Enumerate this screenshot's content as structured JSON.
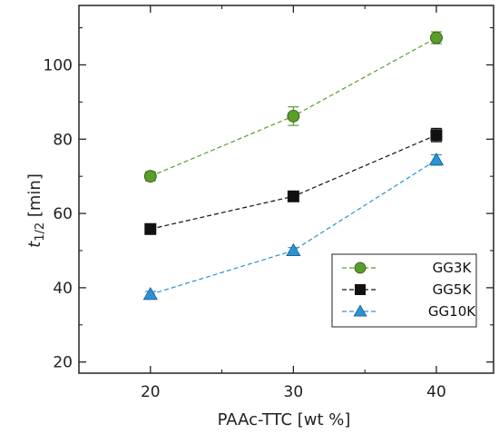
{
  "chart_data": {
    "type": "line",
    "xlabel": "PAAc-TTC [wt %]",
    "ylabel_main": "t",
    "ylabel_sub": "1/2",
    "ylabel_unit": " [min]",
    "x": [
      20,
      30,
      40
    ],
    "xlim": [
      15,
      44
    ],
    "ylim": [
      17,
      116
    ],
    "xticks": [
      20,
      30,
      40
    ],
    "yticks": [
      20,
      40,
      60,
      80,
      100
    ],
    "grid": false,
    "legend_position": "bottom-right",
    "series": [
      {
        "name": "GG3K",
        "marker": "circle",
        "color": "#5a9e2a",
        "values": [
          70,
          86.2,
          107.3
        ],
        "errors": [
          1.2,
          2.5,
          1.6
        ]
      },
      {
        "name": "GG5K",
        "marker": "square",
        "color": "#111111",
        "values": [
          55.8,
          64.6,
          81.1
        ],
        "errors": [
          1.0,
          1.2,
          1.8
        ]
      },
      {
        "name": "GG10K",
        "marker": "triangle",
        "color": "#2a93d5",
        "values": [
          38.2,
          50.0,
          74.4
        ],
        "errors": [
          0.8,
          0.8,
          1.4
        ]
      }
    ]
  }
}
